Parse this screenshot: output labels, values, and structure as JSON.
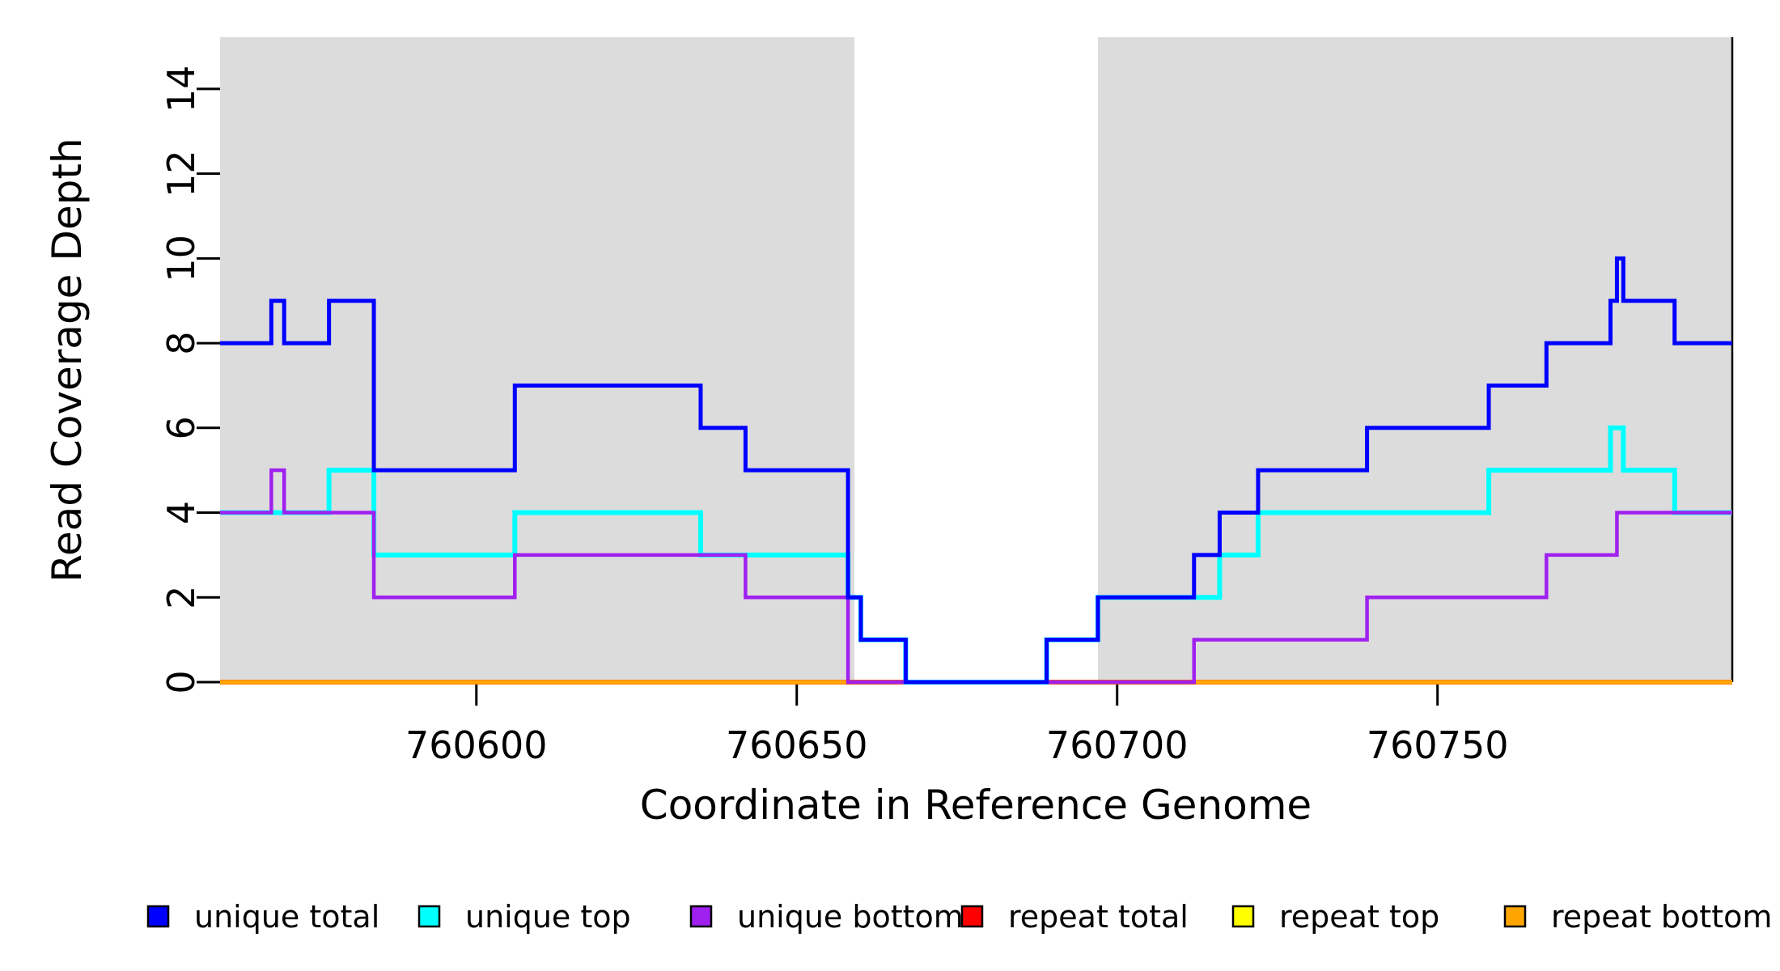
{
  "figure_title": "",
  "chart_data": {
    "type": "line",
    "step": true,
    "title": "",
    "xlabel": "Coordinate in Reference Genome",
    "ylabel": "Read Coverage Depth",
    "xlim": [
      760560,
      760796
    ],
    "ylim": [
      0,
      15.22
    ],
    "x_ticks": [
      760600,
      760650,
      760700,
      760750
    ],
    "y_ticks": [
      0,
      2,
      4,
      6,
      8,
      10,
      12,
      14
    ],
    "grid": false,
    "legend_position": "bottom",
    "shade_color": "#DCDCDC",
    "shaded_x_ranges": [
      [
        760560,
        760659
      ],
      [
        760697,
        760796
      ]
    ],
    "series": [
      {
        "name": "repeat total",
        "color": "#FF0000",
        "width": 6,
        "steps": [
          [
            760560,
            0
          ],
          [
            760796,
            0
          ]
        ]
      },
      {
        "name": "repeat top",
        "color": "#FFFF00",
        "width": 5,
        "steps": [
          [
            760560,
            0
          ],
          [
            760796,
            0
          ]
        ]
      },
      {
        "name": "repeat bottom",
        "color": "#FFA500",
        "width": 4,
        "steps": [
          [
            760560,
            0
          ],
          [
            760796,
            0
          ]
        ]
      },
      {
        "name": "unique top",
        "color": "#00FFFF",
        "width": 6,
        "steps": [
          [
            760560,
            4
          ],
          [
            760577,
            5
          ],
          [
            760584,
            3
          ],
          [
            760606,
            4
          ],
          [
            760635,
            3
          ],
          [
            760658,
            2
          ],
          [
            760660,
            1
          ],
          [
            760667,
            0
          ],
          [
            760689,
            1
          ],
          [
            760697,
            2
          ],
          [
            760716,
            3
          ],
          [
            760722,
            4
          ],
          [
            760758,
            5
          ],
          [
            760777,
            6
          ],
          [
            760779,
            5
          ],
          [
            760787,
            4
          ],
          [
            760796,
            4
          ]
        ]
      },
      {
        "name": "unique bottom",
        "color": "#A020F0",
        "width": 4.5,
        "steps": [
          [
            760560,
            4
          ],
          [
            760568,
            5
          ],
          [
            760570,
            4
          ],
          [
            760584,
            2
          ],
          [
            760606,
            3
          ],
          [
            760642,
            2
          ],
          [
            760658,
            0
          ],
          [
            760712,
            1
          ],
          [
            760739,
            2
          ],
          [
            760767,
            3
          ],
          [
            760778,
            4
          ],
          [
            760796,
            4
          ]
        ]
      },
      {
        "name": "unique total",
        "color": "#0000FF",
        "width": 5,
        "steps": [
          [
            760560,
            8
          ],
          [
            760568,
            9
          ],
          [
            760570,
            8
          ],
          [
            760577,
            9
          ],
          [
            760584,
            5
          ],
          [
            760606,
            7
          ],
          [
            760635,
            6
          ],
          [
            760642,
            5
          ],
          [
            760658,
            2
          ],
          [
            760660,
            1
          ],
          [
            760667,
            0
          ],
          [
            760689,
            1
          ],
          [
            760697,
            2
          ],
          [
            760712,
            3
          ],
          [
            760716,
            4
          ],
          [
            760722,
            5
          ],
          [
            760739,
            6
          ],
          [
            760758,
            7
          ],
          [
            760767,
            8
          ],
          [
            760777,
            9
          ],
          [
            760778,
            10
          ],
          [
            760779,
            9
          ],
          [
            760787,
            8
          ],
          [
            760796,
            8
          ]
        ]
      }
    ],
    "legend": [
      {
        "label": "unique total",
        "color": "#0000FF"
      },
      {
        "label": "unique top",
        "color": "#00FFFF"
      },
      {
        "label": "unique bottom",
        "color": "#A020F0"
      },
      {
        "label": "repeat total",
        "color": "#FF0000"
      },
      {
        "label": "repeat top",
        "color": "#FFFF00"
      },
      {
        "label": "repeat bottom",
        "color": "#FFA500"
      }
    ],
    "plot_border": {
      "right_edge_color": "#000000"
    }
  }
}
